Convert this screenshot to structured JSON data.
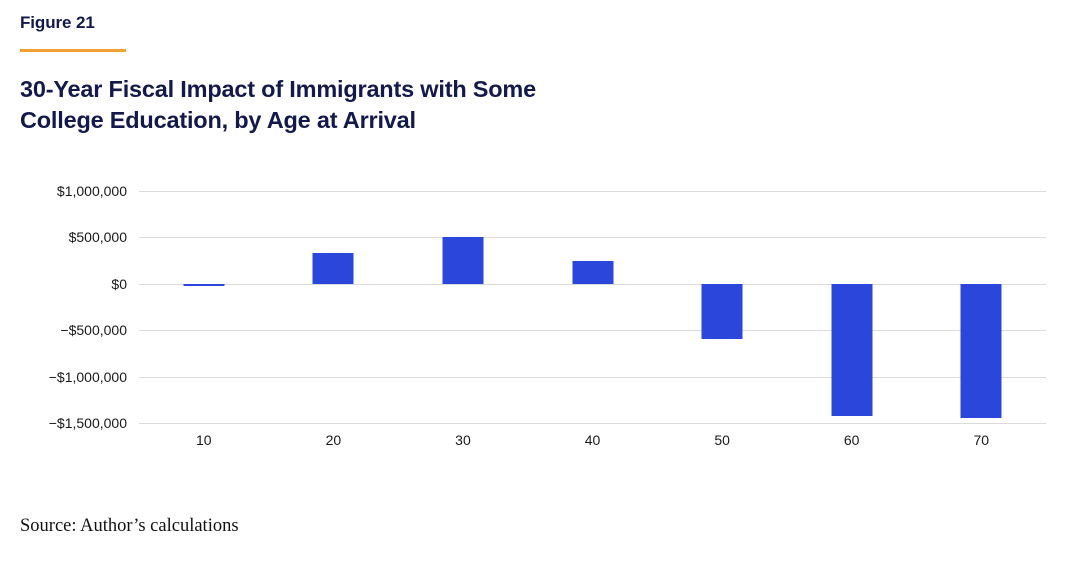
{
  "figure_label": "Figure 21",
  "title": {
    "line1": "30-Year Fiscal Impact of Immigrants with Some",
    "line2": "College Education, by Age at Arrival"
  },
  "source": "Source: Author’s calculations",
  "colors": {
    "bar": "#2B47DB",
    "accent_orange": "#F2A033",
    "title_navy": "#131A4B",
    "gridline": "#DBDBDB",
    "axis_text": "#1A1A1A"
  },
  "chart_data": {
    "type": "bar",
    "title": "30-Year Fiscal Impact of Immigrants with Some College Education, by Age at Arrival",
    "categories": [
      "10",
      "20",
      "30",
      "40",
      "50",
      "60",
      "70"
    ],
    "values": [
      -25000,
      330000,
      500000,
      250000,
      -600000,
      -1420000,
      -1450000
    ],
    "xlabel": "",
    "ylabel": "",
    "ylim": [
      -1500000,
      1000000
    ],
    "ytick_values": [
      1000000,
      500000,
      0,
      -500000,
      -1000000,
      -1500000
    ],
    "ytick_labels": [
      "$1,000,000",
      "$500,000",
      "$0",
      "−$500,000",
      "−$1,000,000",
      "−$1,500,000"
    ],
    "grid": true,
    "legend": false
  }
}
